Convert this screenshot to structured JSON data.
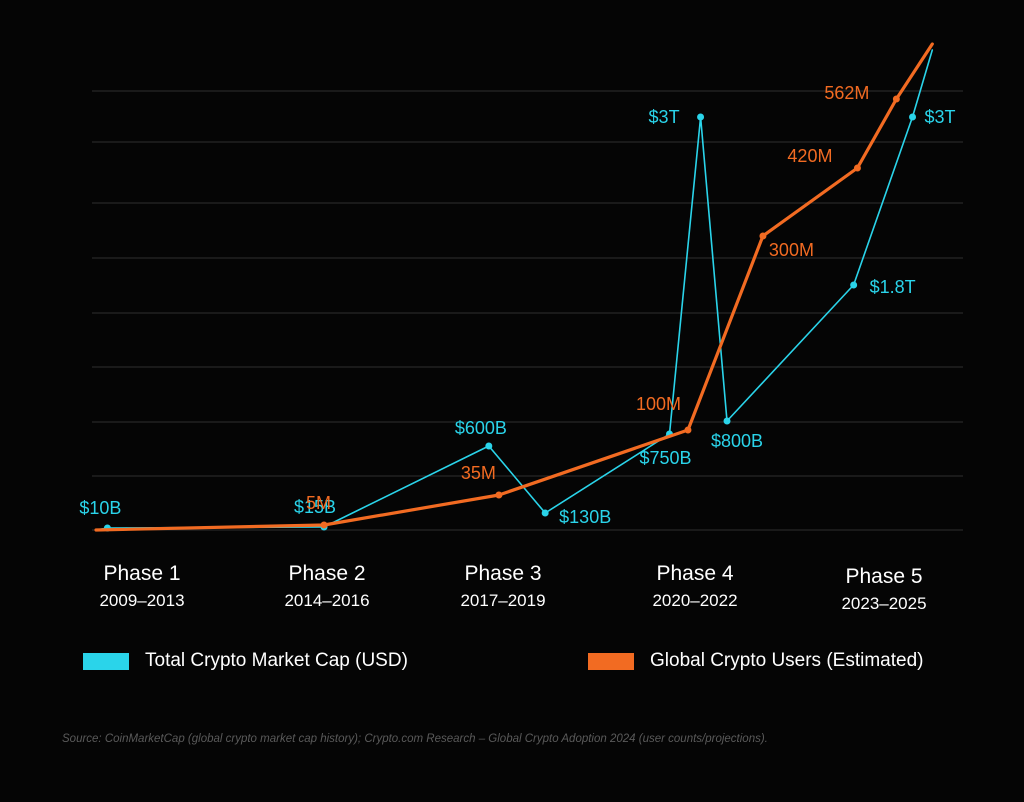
{
  "chart_data": {
    "type": "line",
    "categories": [
      {
        "name": "Phase 1",
        "years": "2009–2013"
      },
      {
        "name": "Phase 2",
        "years": "2014–2016"
      },
      {
        "name": "Phase 3",
        "years": "2017–2019"
      },
      {
        "name": "Phase 4",
        "years": "2020–2022"
      },
      {
        "name": "Phase 5",
        "years": "2023–2025"
      }
    ],
    "grid": true,
    "legend_position": "bottom",
    "series": [
      {
        "name": "Total Crypto Market Cap (USD)",
        "color": "#2ad4ea",
        "points": [
          {
            "x": 0.0,
            "y": 0,
            "label": ""
          },
          {
            "x": 0.05,
            "y": 0.01,
            "label": "$10B"
          },
          {
            "x": 1.0,
            "y": 0.015,
            "label": "$15B"
          },
          {
            "x": 1.82,
            "y": 0.6,
            "label": "$600B"
          },
          {
            "x": 2.12,
            "y": 0.13,
            "label": "$130B"
          },
          {
            "x": 2.86,
            "y": 0.75,
            "label": "$750B"
          },
          {
            "x": 3.04,
            "y": 3.0,
            "label": "$3T"
          },
          {
            "x": 3.18,
            "y": 0.8,
            "label": "$800B"
          },
          {
            "x": 3.85,
            "y": 1.8,
            "label": "$1.8T"
          },
          {
            "x": 4.17,
            "y": 3.0,
            "label": "$3T"
          },
          {
            "x": 4.28,
            "y": 3.5,
            "label": ""
          }
        ]
      },
      {
        "name": "Global Crypto Users (Estimated)",
        "color": "#f26b22",
        "points": [
          {
            "x": 0.0,
            "y": 0,
            "label": ""
          },
          {
            "x": 1.0,
            "y": 5,
            "label": "5M"
          },
          {
            "x": 1.87,
            "y": 35,
            "label": "35M"
          },
          {
            "x": 2.97,
            "y": 100,
            "label": "100M"
          },
          {
            "x": 3.37,
            "y": 300,
            "label": "300M"
          },
          {
            "x": 3.87,
            "y": 420,
            "label": "420M"
          },
          {
            "x": 4.08,
            "y": 562,
            "label": "562M"
          },
          {
            "x": 4.28,
            "y": 600,
            "label": ""
          }
        ]
      }
    ]
  },
  "source": "Source: CoinMarketCap (global crypto market cap history); Crypto.com Research – Global Crypto Adoption 2024 (user counts/projections)."
}
